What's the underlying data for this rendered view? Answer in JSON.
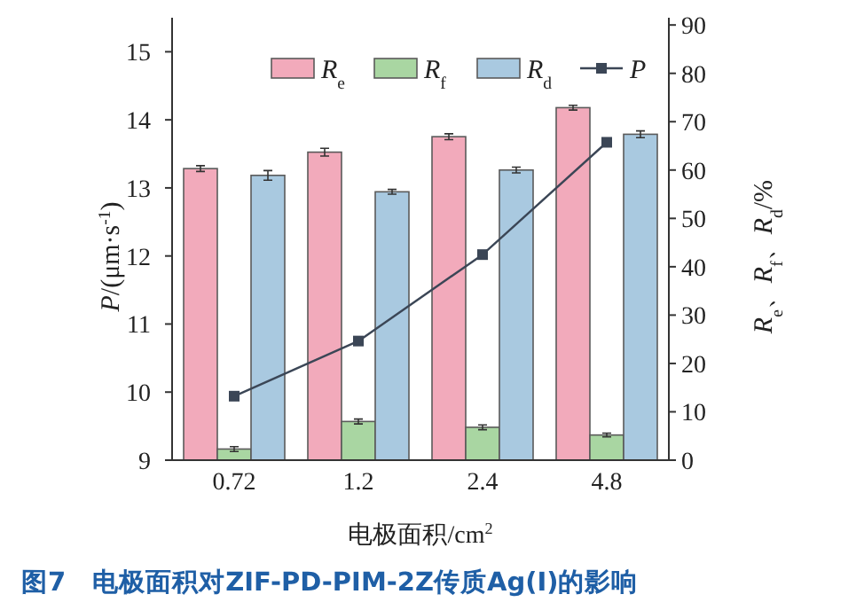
{
  "chart_data": {
    "type": "bar",
    "title": "图7　电极面积对ZIF-PD-PIM-2Z传质Ag(Ⅰ)的影响",
    "xlabel": "电极面积/cm$^{2}$",
    "ylabel": "*P*/(μm·s$^{-1}$)",
    "y2label": "*R*$_{e}$、*R*$_{f}$、*R*$_{d}$/%",
    "categories": [
      "0.72",
      "1.2",
      "2.4",
      "4.8"
    ],
    "series": [
      {
        "name": "*R*$_{e}$",
        "axis": "y2",
        "color": "#f2aabb",
        "values": [
          60.3,
          63.7,
          66.9,
          72.9
        ],
        "errors": [
          0.6,
          0.8,
          0.6,
          0.5
        ]
      },
      {
        "name": "*R*$_{f}$",
        "axis": "y2",
        "color": "#a9d6a2",
        "values": [
          2.3,
          8.0,
          6.8,
          5.2
        ],
        "errors": [
          0.5,
          0.5,
          0.5,
          0.4
        ]
      },
      {
        "name": "*R*$_{d}$",
        "axis": "y2",
        "color": "#a9c9e0",
        "values": [
          58.9,
          55.5,
          60.0,
          67.4
        ],
        "errors": [
          1.0,
          0.5,
          0.6,
          0.7
        ]
      },
      {
        "name": "*P*",
        "type": "line",
        "axis": "y",
        "color": "#3b4656",
        "values": [
          9.94,
          10.75,
          12.02,
          13.67
        ]
      }
    ],
    "ylim": [
      9,
      15.5
    ],
    "yticks": [
      9,
      10,
      11,
      12,
      13,
      14,
      15
    ],
    "y2lim": [
      0,
      91.5
    ],
    "y2ticks": [
      0,
      10,
      20,
      30,
      40,
      50,
      60,
      70,
      80,
      90
    ],
    "legend": "top right",
    "marker": "square",
    "line_style": "solid"
  }
}
